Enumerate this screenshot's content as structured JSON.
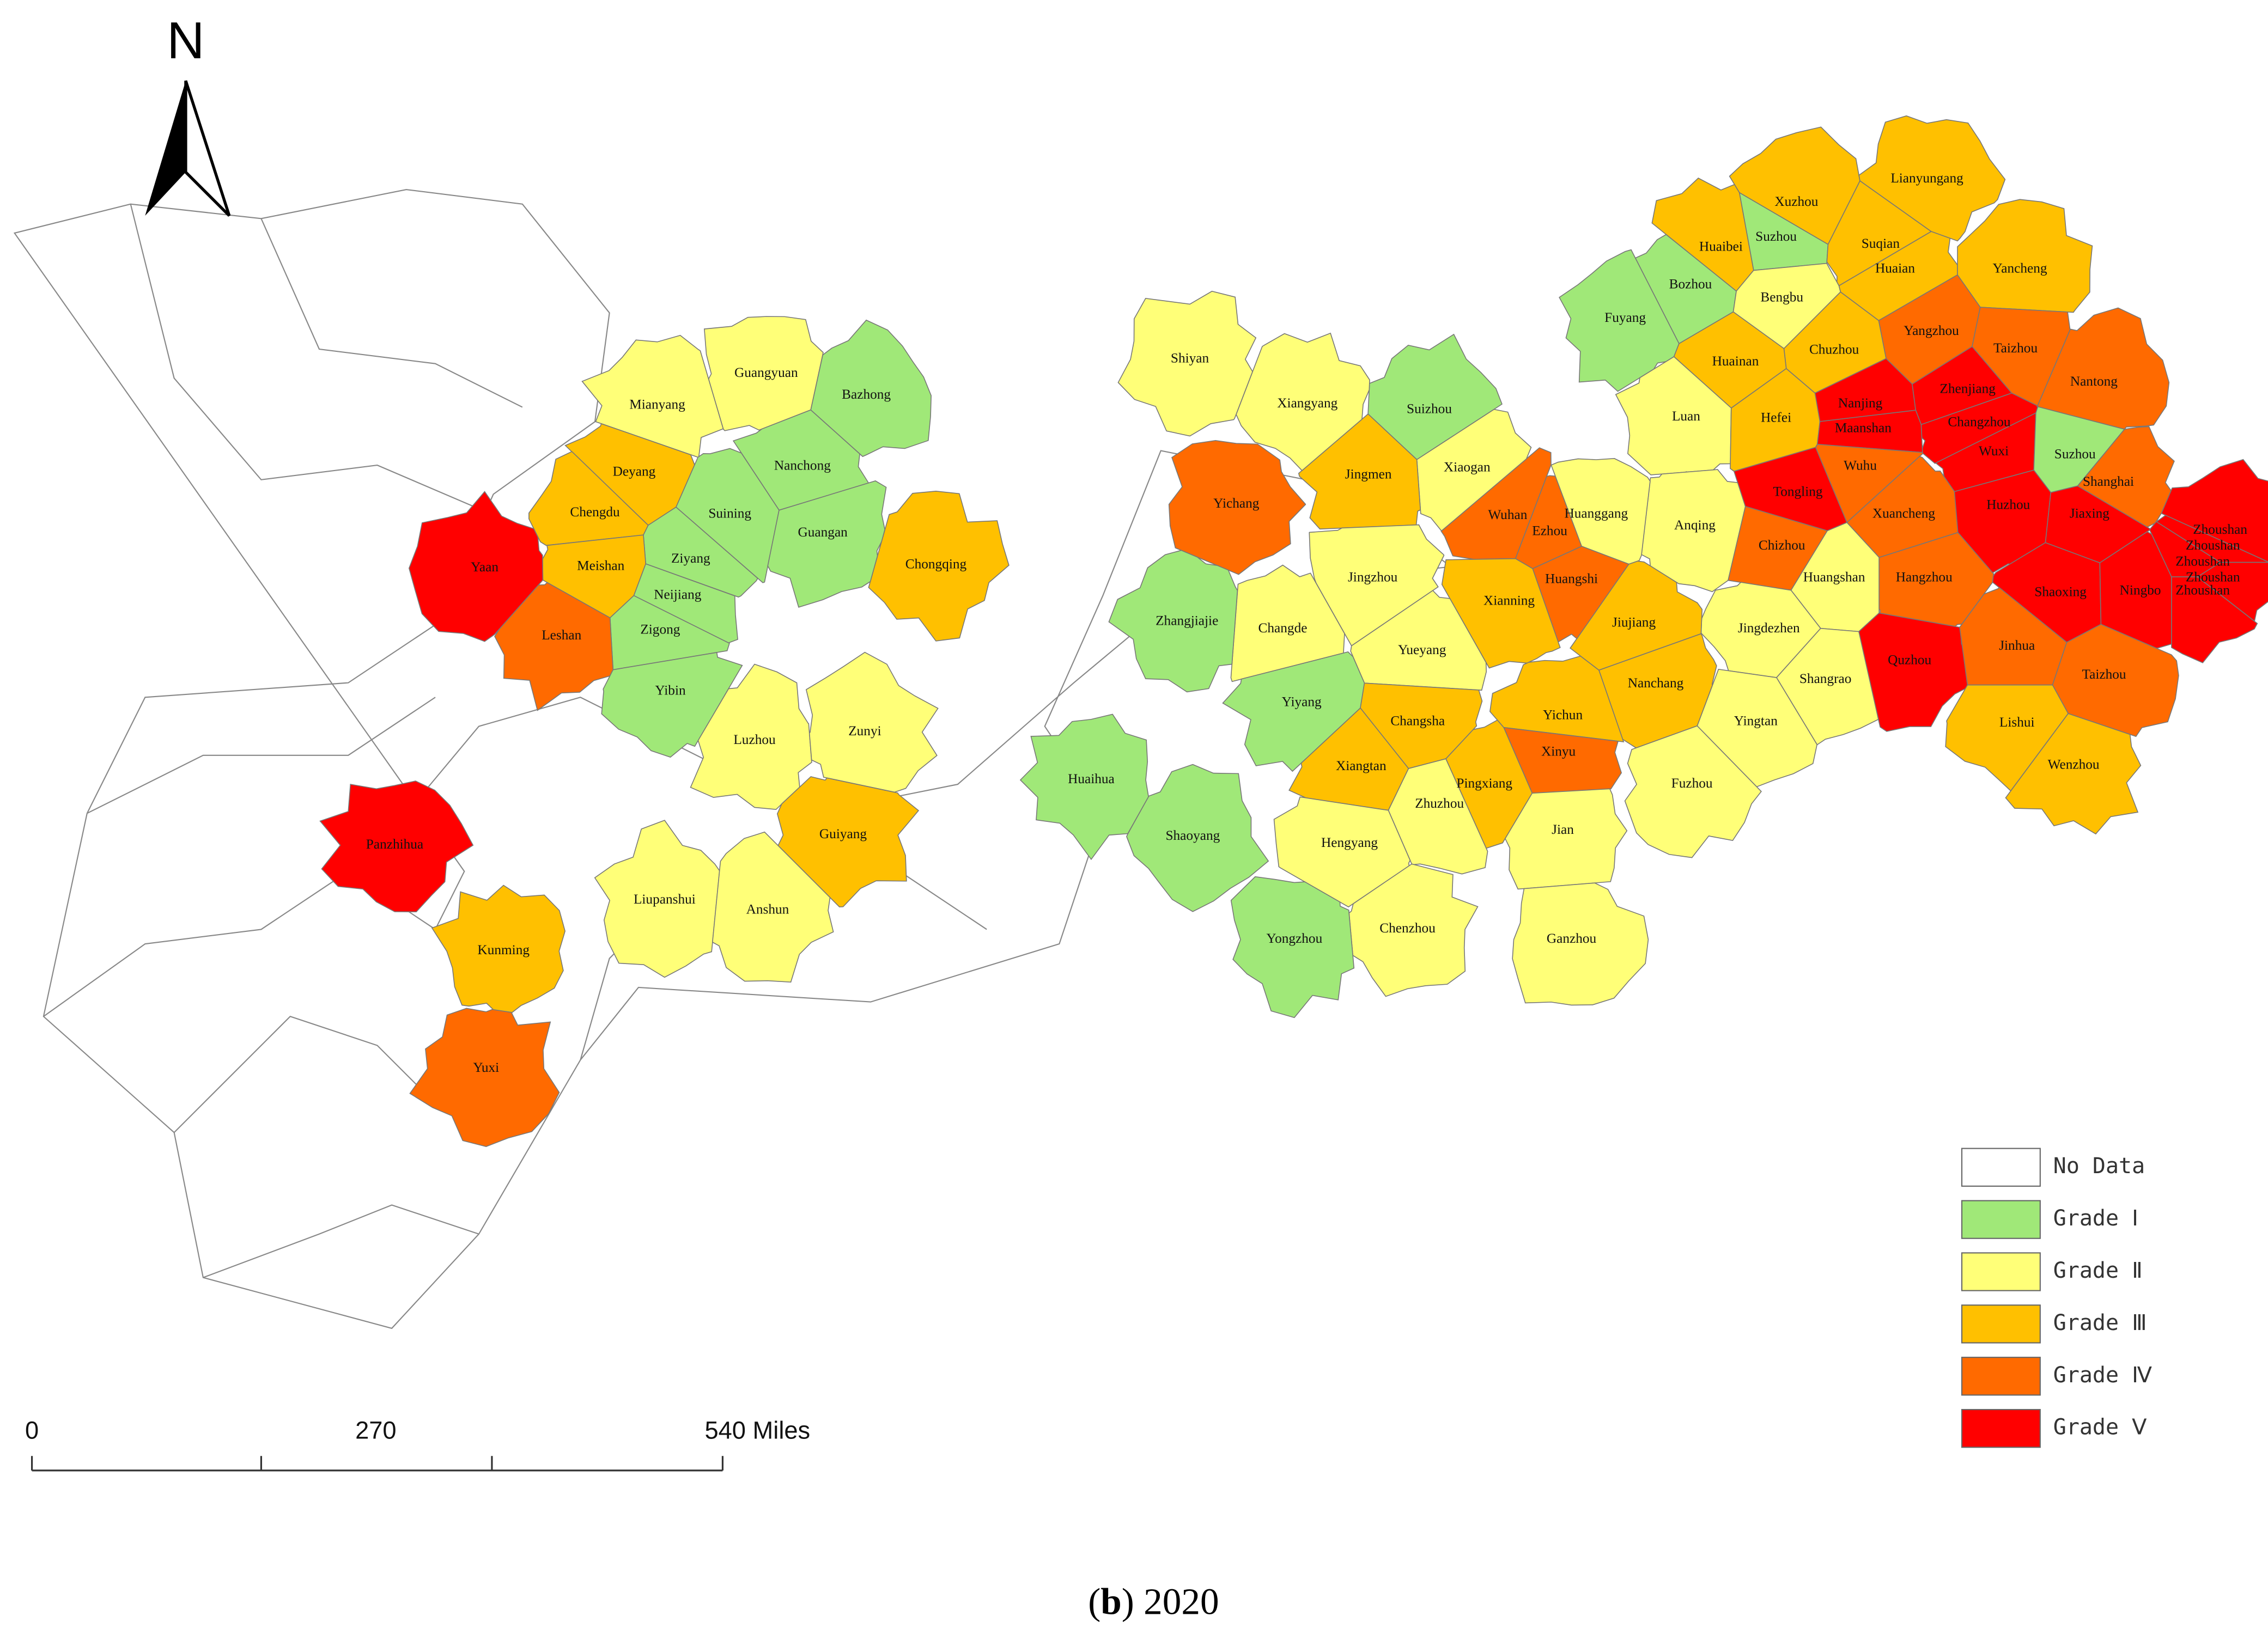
{
  "map": {
    "north": "N",
    "caption": [
      "(",
      "b",
      ") 2020"
    ],
    "scale_bar": [
      "0",
      "270",
      "540 Miles"
    ],
    "legend": [
      {
        "name": "No Data",
        "color": "#ffffff"
      },
      {
        "name": "Grade Ⅰ",
        "color": "#a0e878"
      },
      {
        "name": "Grade Ⅱ",
        "color": "#ffff78"
      },
      {
        "name": "Grade Ⅲ",
        "color": "#ffc000"
      },
      {
        "name": "Grade Ⅳ",
        "color": "#ff6a00"
      },
      {
        "name": "Grade Ⅴ",
        "color": "#ff0000"
      }
    ],
    "cities": [
      {
        "name": "Xuzhou",
        "color": "#ffc000"
      },
      {
        "name": "Lianyungang",
        "color": "#ffc000"
      },
      {
        "name": "Suzhou",
        "color": "#a0e878"
      },
      {
        "name": "Huaibei",
        "color": "#ffc000"
      },
      {
        "name": "Suqian",
        "color": "#ffc000"
      },
      {
        "name": "Huaian",
        "color": "#ffc000"
      },
      {
        "name": "Yancheng",
        "color": "#ffc000"
      },
      {
        "name": "Bozhou",
        "color": "#a0e878"
      },
      {
        "name": "Bengbu",
        "color": "#ffff78"
      },
      {
        "name": "Fuyang",
        "color": "#a0e878"
      },
      {
        "name": "Yangzhou",
        "color": "#ff6a00"
      },
      {
        "name": "Taizhou",
        "color": "#ff6a00"
      },
      {
        "name": "Chuzhou",
        "color": "#ffc000"
      },
      {
        "name": "Huainan",
        "color": "#ffc000"
      },
      {
        "name": "Nantong",
        "color": "#ff6a00"
      },
      {
        "name": "Nanjing",
        "color": "#ff0000"
      },
      {
        "name": "Zhenjiang",
        "color": "#ff0000"
      },
      {
        "name": "Changzhou",
        "color": "#ff0000"
      },
      {
        "name": "Luan",
        "color": "#ffff78"
      },
      {
        "name": "Hefei",
        "color": "#ffc000"
      },
      {
        "name": "Maanshan",
        "color": "#ff0000"
      },
      {
        "name": "Wuxi",
        "color": "#ff0000"
      },
      {
        "name": "Suzhou",
        "color": "#a0e878"
      },
      {
        "name": "Wuhu",
        "color": "#ff6a00"
      },
      {
        "name": "Shanghai",
        "color": "#ff6a00"
      },
      {
        "name": "Tongling",
        "color": "#ff0000"
      },
      {
        "name": "Xuancheng",
        "color": "#ff6a00"
      },
      {
        "name": "Huzhou",
        "color": "#ff0000"
      },
      {
        "name": "Jiaxing",
        "color": "#ff0000"
      },
      {
        "name": "Zhoushan",
        "color": "#ff0000"
      },
      {
        "name": "Zhoushan",
        "color": "#ff0000"
      },
      {
        "name": "Zhoushan",
        "color": "#ff0000"
      },
      {
        "name": "Zhoushan",
        "color": "#ff0000"
      },
      {
        "name": "Zhoushan",
        "color": "#ff0000"
      },
      {
        "name": "Chizhou",
        "color": "#ff6a00"
      },
      {
        "name": "Anqing",
        "color": "#ffff78"
      },
      {
        "name": "Huangshan",
        "color": "#ffff78"
      },
      {
        "name": "Hangzhou",
        "color": "#ff6a00"
      },
      {
        "name": "Shaoxing",
        "color": "#ff0000"
      },
      {
        "name": "Ningbo",
        "color": "#ff0000"
      },
      {
        "name": "Jingdezhen",
        "color": "#ffff78"
      },
      {
        "name": "Jiujiang",
        "color": "#ffc000"
      },
      {
        "name": "Quzhou",
        "color": "#ff0000"
      },
      {
        "name": "Jinhua",
        "color": "#ff6a00"
      },
      {
        "name": "Shangrao",
        "color": "#ffff78"
      },
      {
        "name": "Taizhou",
        "color": "#ff6a00"
      },
      {
        "name": "Lishui",
        "color": "#ffc000"
      },
      {
        "name": "Wenzhou",
        "color": "#ffc000"
      },
      {
        "name": "Yingtan",
        "color": "#ffff78"
      },
      {
        "name": "Nanchang",
        "color": "#ffc000"
      },
      {
        "name": "Yichun",
        "color": "#ffc000"
      },
      {
        "name": "Xinyu",
        "color": "#ff6a00"
      },
      {
        "name": "Fuzhou",
        "color": "#ffff78"
      },
      {
        "name": "Pingxiang",
        "color": "#ffc000"
      },
      {
        "name": "Jian",
        "color": "#ffff78"
      },
      {
        "name": "Ganzhou",
        "color": "#ffff78"
      },
      {
        "name": "Wuhan",
        "color": "#ff6a00"
      },
      {
        "name": "Ezhou",
        "color": "#ff6a00"
      },
      {
        "name": "Huanggang",
        "color": "#ffff78"
      },
      {
        "name": "Huangshi",
        "color": "#ff6a00"
      },
      {
        "name": "Xianning",
        "color": "#ffc000"
      },
      {
        "name": "Xiaogan",
        "color": "#ffff78"
      },
      {
        "name": "Suizhou",
        "color": "#a0e878"
      },
      {
        "name": "Jingmen",
        "color": "#ffc000"
      },
      {
        "name": "Xiangyang",
        "color": "#ffff78"
      },
      {
        "name": "Shiyan",
        "color": "#ffff78"
      },
      {
        "name": "Yichang",
        "color": "#ff6a00"
      },
      {
        "name": "Jingzhou",
        "color": "#ffff78"
      },
      {
        "name": "Yueyang",
        "color": "#ffff78"
      },
      {
        "name": "Changde",
        "color": "#ffff78"
      },
      {
        "name": "Zhangjiajie",
        "color": "#a0e878"
      },
      {
        "name": "Yiyang",
        "color": "#a0e878"
      },
      {
        "name": "Changsha",
        "color": "#ffc000"
      },
      {
        "name": "Xiangtan",
        "color": "#ffc000"
      },
      {
        "name": "Zhuzhou",
        "color": "#ffff78"
      },
      {
        "name": "Hengyang",
        "color": "#ffff78"
      },
      {
        "name": "Chenzhou",
        "color": "#ffff78"
      },
      {
        "name": "Yongzhou",
        "color": "#a0e878"
      },
      {
        "name": "Shaoyang",
        "color": "#a0e878"
      },
      {
        "name": "Huaihua",
        "color": "#a0e878"
      },
      {
        "name": "Chongqing",
        "color": "#ffc000"
      },
      {
        "name": "Bazhong",
        "color": "#a0e878"
      },
      {
        "name": "Guangyuan",
        "color": "#ffff78"
      },
      {
        "name": "Mianyang",
        "color": "#ffff78"
      },
      {
        "name": "Nanchong",
        "color": "#a0e878"
      },
      {
        "name": "Deyang",
        "color": "#ffc000"
      },
      {
        "name": "Suining",
        "color": "#a0e878"
      },
      {
        "name": "Guangan",
        "color": "#a0e878"
      },
      {
        "name": "Chengdu",
        "color": "#ffc000"
      },
      {
        "name": "Ziyang",
        "color": "#a0e878"
      },
      {
        "name": "Meishan",
        "color": "#ffc000"
      },
      {
        "name": "Neijiang",
        "color": "#a0e878"
      },
      {
        "name": "Yaan",
        "color": "#ff0000"
      },
      {
        "name": "Zigong",
        "color": "#a0e878"
      },
      {
        "name": "Leshan",
        "color": "#ff6a00"
      },
      {
        "name": "Yibin",
        "color": "#a0e878"
      },
      {
        "name": "Luzhou",
        "color": "#ffff78"
      },
      {
        "name": "Zunyi",
        "color": "#ffff78"
      },
      {
        "name": "Guiyang",
        "color": "#ffc000"
      },
      {
        "name": "Liupanshui",
        "color": "#ffff78"
      },
      {
        "name": "Anshun",
        "color": "#ffff78"
      },
      {
        "name": "Panzhihua",
        "color": "#ff0000"
      },
      {
        "name": "Kunming",
        "color": "#ffc000"
      },
      {
        "name": "Yuxi",
        "color": "#ff6a00"
      }
    ]
  }
}
